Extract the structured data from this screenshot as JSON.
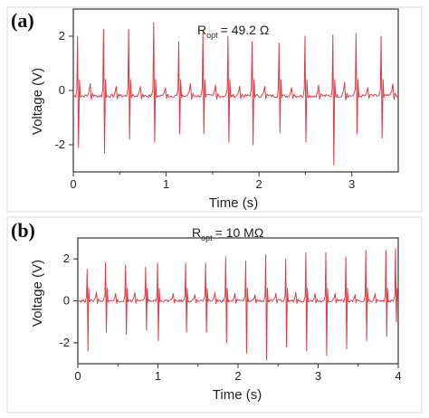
{
  "colors": {
    "trace": "#e03b45",
    "frame": "#333333",
    "panel_box": "#d8d8d8"
  },
  "chart_data": [
    {
      "type": "line",
      "panel_label": "(a)",
      "annotation": {
        "symbol": "R",
        "subscript": "opt",
        "value": "= 49.2 Ω"
      },
      "xlabel": "Time (s)",
      "ylabel": "Voltage (V)",
      "xlim": [
        0,
        3.5
      ],
      "ylim": [
        -3,
        3
      ],
      "xticks": [
        "0",
        "1",
        "2",
        "3"
      ],
      "yticks": [
        "-2",
        "0",
        "2"
      ],
      "grid": false,
      "series": [
        {
          "baseline": -0.2,
          "peaks": [
            {
              "x": 0.05,
              "high": 2.0,
              "low": -2.1
            },
            {
              "x": 0.33,
              "high": 2.25,
              "low": -2.3
            },
            {
              "x": 0.6,
              "high": 2.25,
              "low": -1.8
            },
            {
              "x": 0.87,
              "high": 2.5,
              "low": -1.9
            },
            {
              "x": 1.14,
              "high": 1.8,
              "low": -1.6
            },
            {
              "x": 1.4,
              "high": 2.2,
              "low": -1.6
            },
            {
              "x": 1.67,
              "high": 2.0,
              "low": -1.9
            },
            {
              "x": 1.93,
              "high": 1.8,
              "low": -2.0
            },
            {
              "x": 2.22,
              "high": 1.75,
              "low": -1.55
            },
            {
              "x": 2.5,
              "high": 2.0,
              "low": -1.9
            },
            {
              "x": 2.8,
              "high": 2.05,
              "low": -2.75
            },
            {
              "x": 3.05,
              "high": 2.1,
              "low": -1.6
            },
            {
              "x": 3.32,
              "high": 2.0,
              "low": -1.75
            }
          ],
          "bumps": [
            {
              "x": 0.19,
              "h": 0.45
            },
            {
              "x": 0.47,
              "h": 0.35
            },
            {
              "x": 0.73,
              "h": 0.35
            },
            {
              "x": 1.0,
              "h": 0.3
            },
            {
              "x": 1.27,
              "h": 0.45
            },
            {
              "x": 1.54,
              "h": 0.4
            },
            {
              "x": 1.8,
              "h": 0.35
            },
            {
              "x": 2.07,
              "h": 0.35
            },
            {
              "x": 2.36,
              "h": 0.3
            },
            {
              "x": 2.65,
              "h": 0.4
            },
            {
              "x": 2.93,
              "h": 0.5
            },
            {
              "x": 3.18,
              "h": 0.3
            },
            {
              "x": 3.45,
              "h": 0.45
            }
          ]
        }
      ]
    },
    {
      "type": "line",
      "panel_label": "(b)",
      "annotation": {
        "symbol": "R",
        "subscript": "opt",
        "value": "= 10 MΩ"
      },
      "xlabel": "Time (s)",
      "ylabel": "Voltage (V)",
      "xlim": [
        0,
        4
      ],
      "ylim": [
        -3,
        3
      ],
      "xticks": [
        "0",
        "1",
        "2",
        "3",
        "4"
      ],
      "yticks": [
        "-2",
        "0",
        "2"
      ],
      "grid": false,
      "series": [
        {
          "baseline": 0.0,
          "peaks": [
            {
              "x": 0.12,
              "high": 1.5,
              "low": -2.4
            },
            {
              "x": 0.35,
              "high": 1.8,
              "low": -1.5
            },
            {
              "x": 0.6,
              "high": 1.7,
              "low": -1.6
            },
            {
              "x": 0.85,
              "high": 1.6,
              "low": -1.4
            },
            {
              "x": 1.0,
              "high": 1.8,
              "low": -1.9
            },
            {
              "x": 1.35,
              "high": 1.8,
              "low": -1.5
            },
            {
              "x": 1.6,
              "high": 1.8,
              "low": -1.5
            },
            {
              "x": 1.85,
              "high": 2.1,
              "low": -2.0
            },
            {
              "x": 2.1,
              "high": 1.9,
              "low": -2.5
            },
            {
              "x": 2.35,
              "high": 2.2,
              "low": -2.8
            },
            {
              "x": 2.6,
              "high": 2.0,
              "low": -2.2
            },
            {
              "x": 2.85,
              "high": 2.3,
              "low": -2.4
            },
            {
              "x": 3.1,
              "high": 2.3,
              "low": -2.6
            },
            {
              "x": 3.35,
              "high": 2.1,
              "low": -2.3
            },
            {
              "x": 3.6,
              "high": 2.4,
              "low": -1.9
            },
            {
              "x": 3.85,
              "high": 2.4,
              "low": -1.7
            },
            {
              "x": 3.97,
              "high": 2.5,
              "low": -1.0
            }
          ],
          "bumps": [
            {
              "x": 0.24,
              "h": 0.4
            },
            {
              "x": 0.48,
              "h": 0.35
            },
            {
              "x": 0.72,
              "h": 0.4
            },
            {
              "x": 1.2,
              "h": 0.35
            },
            {
              "x": 1.47,
              "h": 0.3
            },
            {
              "x": 1.72,
              "h": 0.4
            },
            {
              "x": 1.97,
              "h": 0.35
            },
            {
              "x": 2.22,
              "h": 0.3
            },
            {
              "x": 2.48,
              "h": 0.35
            },
            {
              "x": 2.73,
              "h": 0.4
            },
            {
              "x": 2.97,
              "h": 0.35
            },
            {
              "x": 3.22,
              "h": 0.35
            },
            {
              "x": 3.47,
              "h": 0.3
            },
            {
              "x": 3.72,
              "h": 0.35
            }
          ]
        }
      ]
    }
  ]
}
